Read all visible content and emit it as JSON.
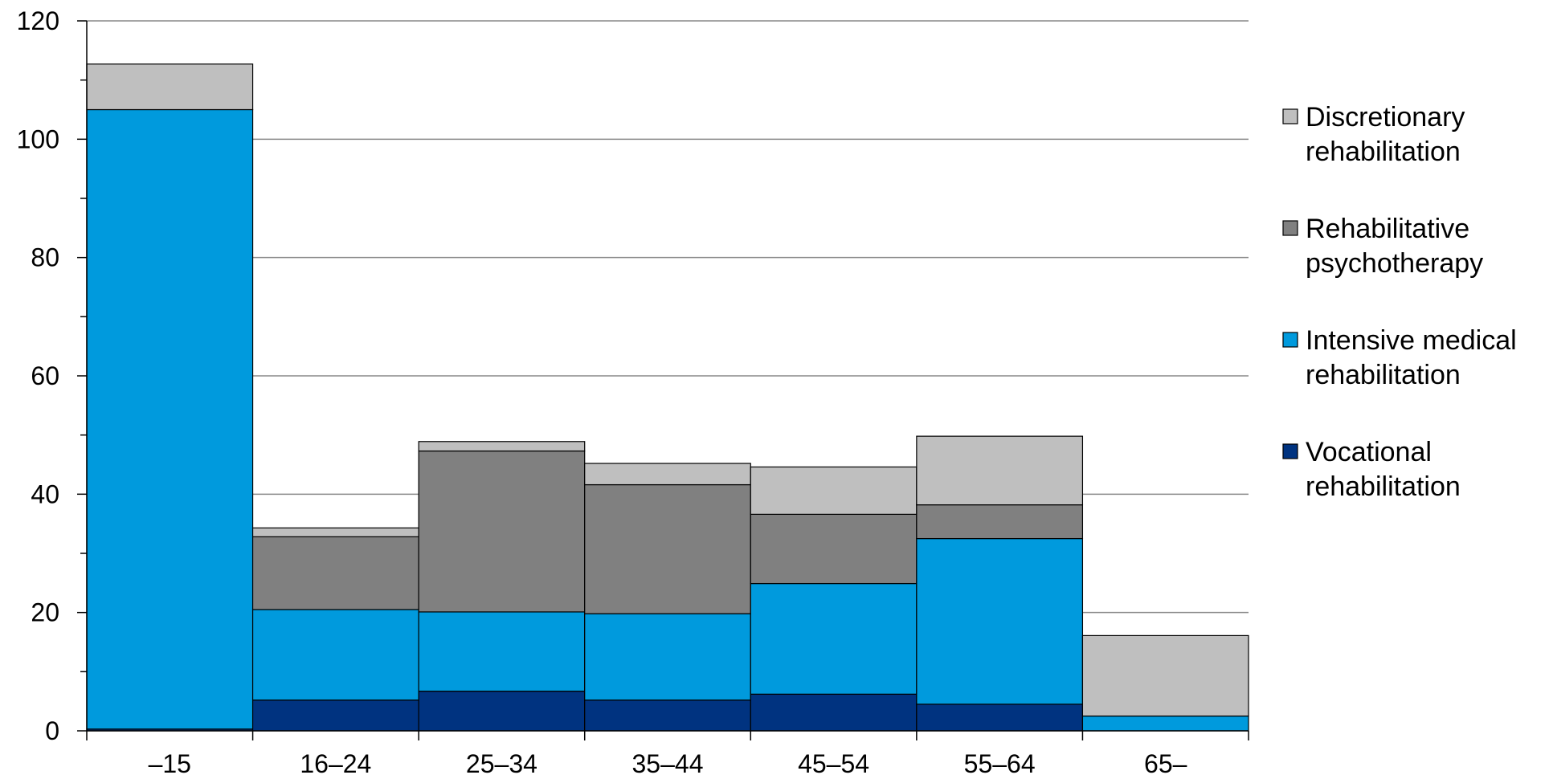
{
  "chart_data": {
    "type": "bar",
    "stacked": true,
    "categories": [
      "–15",
      "16–24",
      "25–34",
      "35–44",
      "45–54",
      "55–64",
      "65–"
    ],
    "series": [
      {
        "name": "Vocational rehabilitation",
        "color": "#003380",
        "values": [
          0.3,
          5.2,
          6.7,
          5.2,
          6.2,
          4.5,
          0
        ]
      },
      {
        "name": "Intensive medical rehabilitation",
        "color": "#009ADD",
        "values": [
          104.7,
          15.3,
          13.4,
          14.6,
          18.7,
          28.0,
          2.5
        ]
      },
      {
        "name": "Rehabilitative psychotherapy",
        "color": "#808080",
        "values": [
          0,
          12.3,
          27.2,
          21.8,
          11.7,
          5.7,
          0
        ]
      },
      {
        "name": "Discretionary rehabilitation",
        "color": "#BFBFBF",
        "values": [
          7.7,
          1.5,
          1.6,
          3.6,
          8.0,
          11.6,
          13.6
        ]
      }
    ],
    "legend_order": [
      "Discretionary rehabilitation",
      "Rehabilitative psychotherapy",
      "Intensive medical rehabilitation",
      "Vocational rehabilitation"
    ],
    "legend_lines": {
      "Discretionary rehabilitation": [
        "Discretionary",
        "rehabilitation"
      ],
      "Rehabilitative psychotherapy": [
        "Rehabilitative",
        "psychotherapy"
      ],
      "Intensive medical rehabilitation": [
        "Intensive medical",
        "rehabilitation"
      ],
      "Vocational rehabilitation": [
        "Vocational",
        "rehabilitation"
      ]
    },
    "ylim": [
      0,
      120
    ],
    "yticks": [
      0,
      20,
      40,
      60,
      80,
      100,
      120
    ],
    "ygrid": true,
    "legend_position": "right",
    "title": "",
    "xlabel": "",
    "ylabel": ""
  }
}
